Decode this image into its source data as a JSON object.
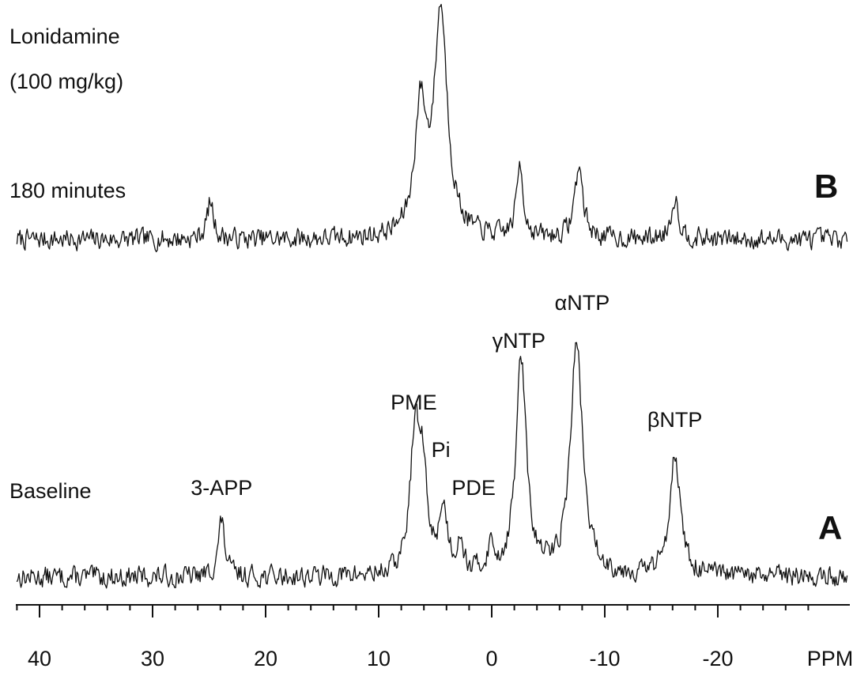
{
  "chart_data": {
    "type": "line",
    "xlabel": "PPM",
    "x_reversed": true,
    "xlim": [
      42,
      -32
    ],
    "ticks": [
      40,
      30,
      20,
      10,
      0,
      -10,
      -20
    ],
    "tick_labels": [
      "40",
      "30",
      "20",
      "10",
      "0",
      "-10",
      "-20"
    ],
    "noise_amplitude": 0.5,
    "series": [
      {
        "panel": "B",
        "text": [
          "Lonidamine",
          "(100 mg/kg)",
          "180 minutes"
        ],
        "peaks": [
          {
            "ppm": 24.9,
            "height": 2.4,
            "width": 0.35
          },
          {
            "ppm": 6.3,
            "height": 8.0,
            "width": 0.6
          },
          {
            "ppm": 4.5,
            "height": 14.5,
            "width": 0.7
          },
          {
            "ppm": -2.5,
            "height": 4.8,
            "width": 0.35
          },
          {
            "ppm": -7.7,
            "height": 4.6,
            "width": 0.45
          },
          {
            "ppm": -16.2,
            "height": 2.7,
            "width": 0.4
          }
        ]
      },
      {
        "panel": "A",
        "text": [
          "Baseline"
        ],
        "peaks": [
          {
            "ppm": 23.9,
            "height": 3.5,
            "width": 0.35
          },
          {
            "ppm": 6.8,
            "height": 8.5,
            "width": 0.5
          },
          {
            "ppm": 6.1,
            "height": 5.5,
            "width": 0.45
          },
          {
            "ppm": 4.3,
            "height": 4.0,
            "width": 0.45
          },
          {
            "ppm": 2.8,
            "height": 2.2,
            "width": 0.3
          },
          {
            "ppm": 0.1,
            "height": 1.5,
            "width": 0.35
          },
          {
            "ppm": -2.6,
            "height": 13.5,
            "width": 0.55
          },
          {
            "ppm": -7.5,
            "height": 14.5,
            "width": 0.65
          },
          {
            "ppm": -16.2,
            "height": 7.8,
            "width": 0.55
          }
        ]
      }
    ],
    "peak_labels": [
      {
        "text": "3-APP",
        "ppm": 23.9
      },
      {
        "text": "PME",
        "ppm": 6.9
      },
      {
        "text": "Pi",
        "ppm": 4.5
      },
      {
        "text": "PDE",
        "ppm": 1.6
      },
      {
        "text": "γNTP",
        "ppm": -2.4
      },
      {
        "text": "αNTP",
        "ppm": -8.0
      },
      {
        "text": "βNTP",
        "ppm": -16.2
      }
    ],
    "panel_letters": [
      "B",
      "A"
    ]
  }
}
